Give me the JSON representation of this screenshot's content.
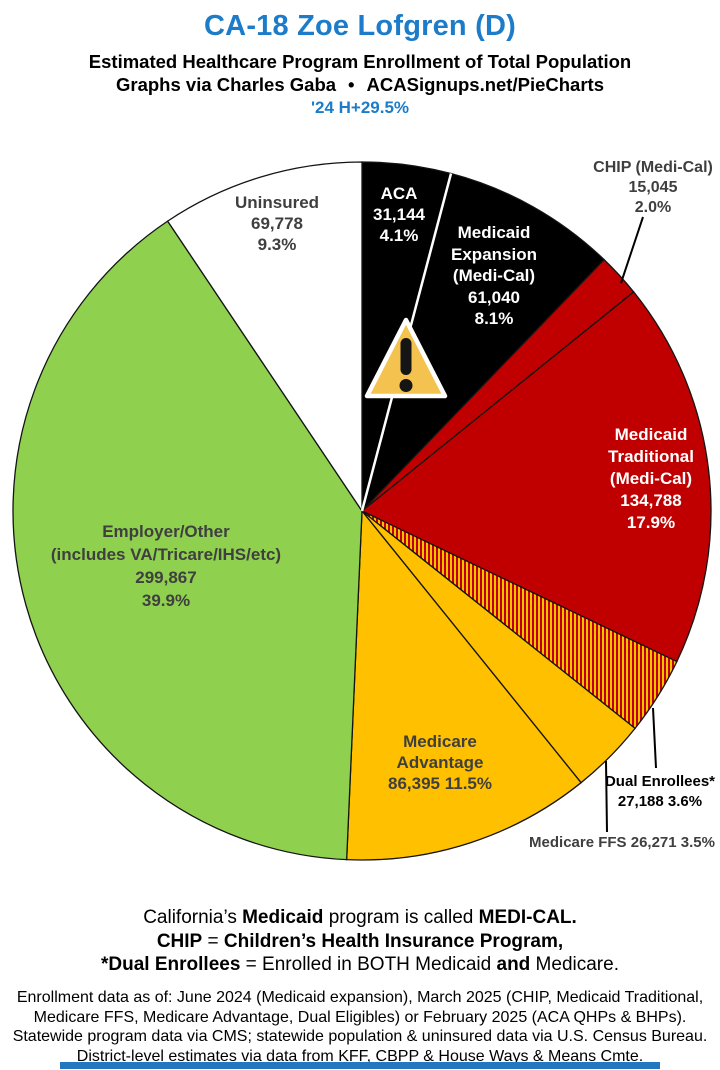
{
  "header": {
    "title": "CA-18 Zoe Lofgren (D)",
    "subtitle": "Estimated Healthcare Program Enrollment of Total Population",
    "credit_left": "Graphs via Charles Gaba",
    "credit_bullet": "•",
    "credit_site": "ACASignups.net/PieCharts",
    "growth": "'24 H+29.5%"
  },
  "chart_data": {
    "type": "pie",
    "title": "CA-18 Zoe Lofgren (D) — Estimated Healthcare Program Enrollment of Total Population",
    "legend_position": "labels-on-and-around-slices",
    "start_angle_deg": 0,
    "direction": "clockwise",
    "slices": [
      {
        "id": "aca",
        "name": "ACA",
        "value": 31144,
        "pct": 4.1,
        "color": "#000000",
        "label_lines": [
          "ACA",
          "31,144",
          "4.1%"
        ]
      },
      {
        "id": "medicaid-expansion",
        "name": "Medicaid Expansion (Medi-Cal)",
        "value": 61040,
        "pct": 8.1,
        "color": "#000000",
        "label_lines": [
          "Medicaid",
          "Expansion",
          "(Medi-Cal)",
          "61,040",
          "8.1%"
        ]
      },
      {
        "id": "chip",
        "name": "CHIP (Medi-Cal)",
        "value": 15045,
        "pct": 2.0,
        "color": "#C00000",
        "label_lines": [
          "CHIP (Medi-Cal)",
          "15,045",
          "2.0%"
        ]
      },
      {
        "id": "medicaid-traditional",
        "name": "Medicaid Traditional (Medi-Cal)",
        "value": 134788,
        "pct": 17.9,
        "color": "#C00000",
        "label_lines": [
          "Medicaid",
          "Traditional",
          "(Medi-Cal)",
          "134,788",
          "17.9%"
        ]
      },
      {
        "id": "dual-enrollees",
        "name": "Dual Enrollees*",
        "value": 27188,
        "pct": 3.6,
        "color": "hatch",
        "label_lines": [
          "Dual Enrollees*",
          "27,188 3.6%"
        ]
      },
      {
        "id": "medicare-ffs",
        "name": "Medicare FFS",
        "value": 26271,
        "pct": 3.5,
        "color": "#FFC000",
        "label_lines": [
          "Medicare FFS 26,271 3.5%"
        ]
      },
      {
        "id": "medicare-advantage",
        "name": "Medicare Advantage",
        "value": 86395,
        "pct": 11.5,
        "color": "#FFC000",
        "label_lines": [
          "Medicare",
          "Advantage",
          "86,395 11.5%"
        ]
      },
      {
        "id": "employer-other",
        "name": "Employer/Other",
        "value": 299867,
        "pct": 39.9,
        "color": "#8FD14F",
        "label_lines": [
          "Employer/Other",
          "(includes VA/Tricare/IHS/etc)",
          "299,867",
          "39.9%"
        ]
      },
      {
        "id": "uninsured",
        "name": "Uninsured",
        "value": 69778,
        "pct": 9.3,
        "color": "#FFFFFF",
        "label_lines": [
          "Uninsured",
          "69,778",
          "9.3%"
        ]
      }
    ],
    "hatch_colors": [
      "#C00000",
      "#FFC000"
    ],
    "warning_icon": "warning-triangle"
  },
  "notes": {
    "line1": [
      {
        "t": "California’s ",
        "b": 0
      },
      {
        "t": "Medicaid",
        "b": 1
      },
      {
        "t": " program is called ",
        "b": 0
      },
      {
        "t": "MEDI-CAL.",
        "b": 1
      }
    ],
    "line2": [
      {
        "t": "CHIP",
        "b": 1
      },
      {
        "t": " = ",
        "b": 0
      },
      {
        "t": "Children’s Health Insurance Program,",
        "b": 1
      }
    ],
    "line3": [
      {
        "t": "*Dual Enrollees",
        "b": 1
      },
      {
        "t": " = Enrolled in BOTH Medicaid ",
        "b": 0
      },
      {
        "t": "and",
        "b": 1
      },
      {
        "t": " Medicare.",
        "b": 0
      }
    ]
  },
  "footnotes": [
    "Enrollment data as of: June 2024 (Medicaid expansion), March 2025 (CHIP, Medicaid Traditional,",
    "Medicare FFS, Medicare Advantage, Dual Eligibles) or February 2025 (ACA QHPs & BHPs).",
    "Statewide program data via CMS; statewide population & uninsured data via U.S. Census Bureau.",
    "District-level estimates via data from KFF, CBPP & House Ways & Means Cmte."
  ]
}
